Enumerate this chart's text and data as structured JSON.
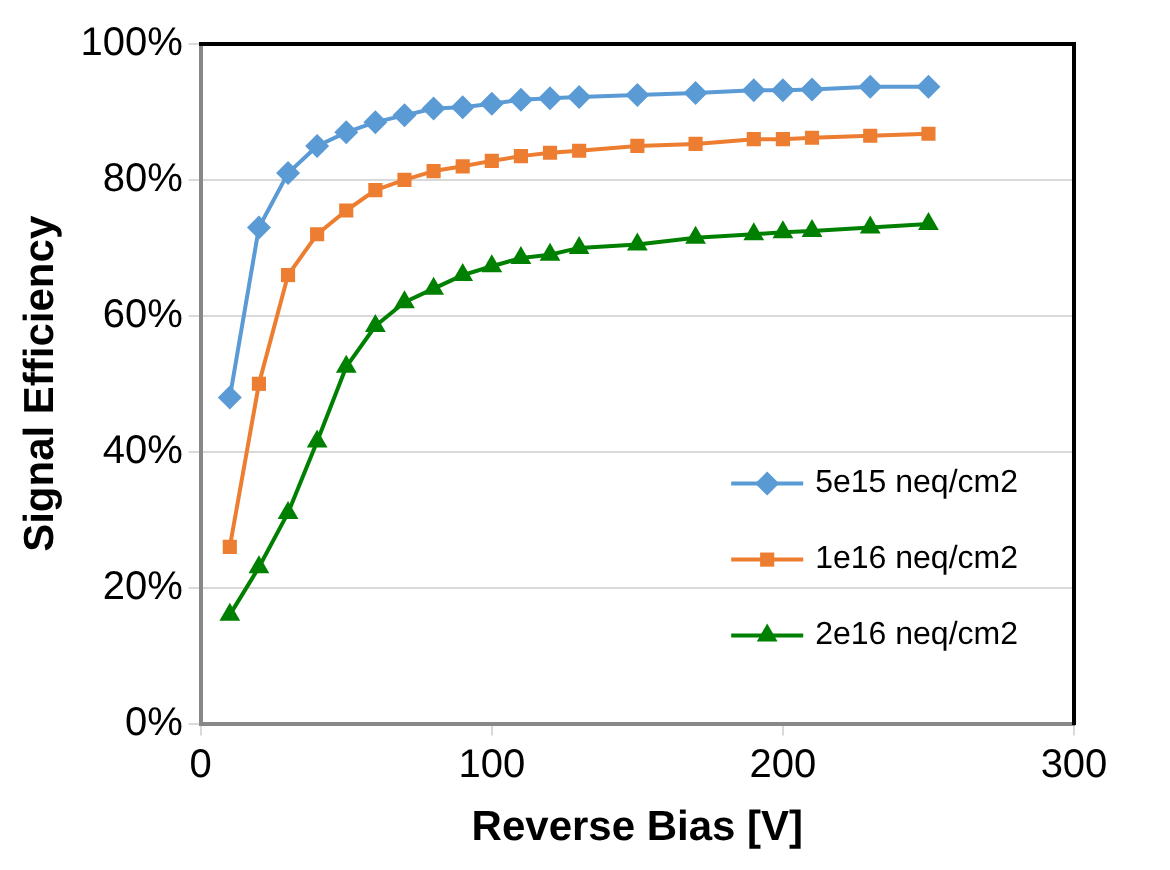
{
  "chart_data": {
    "type": "line",
    "xlabel": "Reverse Bias [V]",
    "ylabel": "Signal Efficiency",
    "xlim": [
      0,
      300
    ],
    "xticks": [
      0,
      100,
      200,
      300
    ],
    "ylim": [
      0,
      100
    ],
    "yticks": [
      {
        "value": 0,
        "label": "0%"
      },
      {
        "value": 20,
        "label": "20%"
      },
      {
        "value": 40,
        "label": "40%"
      },
      {
        "value": 60,
        "label": "60%"
      },
      {
        "value": 80,
        "label": "80%"
      },
      {
        "value": 100,
        "label": "100%"
      }
    ],
    "grid": "y",
    "legend": "bottom right",
    "x": [
      10,
      20,
      30,
      40,
      50,
      60,
      70,
      80,
      90,
      100,
      110,
      120,
      130,
      150,
      170,
      190,
      200,
      210,
      230,
      250
    ],
    "series": [
      {
        "name": "5e15 neq/cm2",
        "color": "#5b9bd5",
        "marker": "diamond",
        "values": [
          48,
          73,
          81,
          85,
          87,
          88.5,
          89.5,
          90.5,
          90.7,
          91.2,
          91.8,
          92,
          92.2,
          92.5,
          92.8,
          93.2,
          93.2,
          93.3,
          93.7,
          93.7
        ]
      },
      {
        "name": "1e16 neq/cm2",
        "color": "#ed7d31",
        "marker": "square",
        "values": [
          26,
          50,
          66,
          72,
          75.5,
          78.5,
          80,
          81.3,
          82,
          82.8,
          83.5,
          84,
          84.3,
          85,
          85.3,
          86,
          86,
          86.2,
          86.5,
          86.8
        ]
      },
      {
        "name": "2e16 neq/cm2",
        "color": "#008000",
        "marker": "triangle",
        "values": [
          16,
          23,
          31,
          41.5,
          52.5,
          58.5,
          62,
          64,
          66,
          67.3,
          68.5,
          69,
          70,
          70.5,
          71.5,
          72,
          72.3,
          72.5,
          73,
          73.5
        ]
      }
    ]
  }
}
